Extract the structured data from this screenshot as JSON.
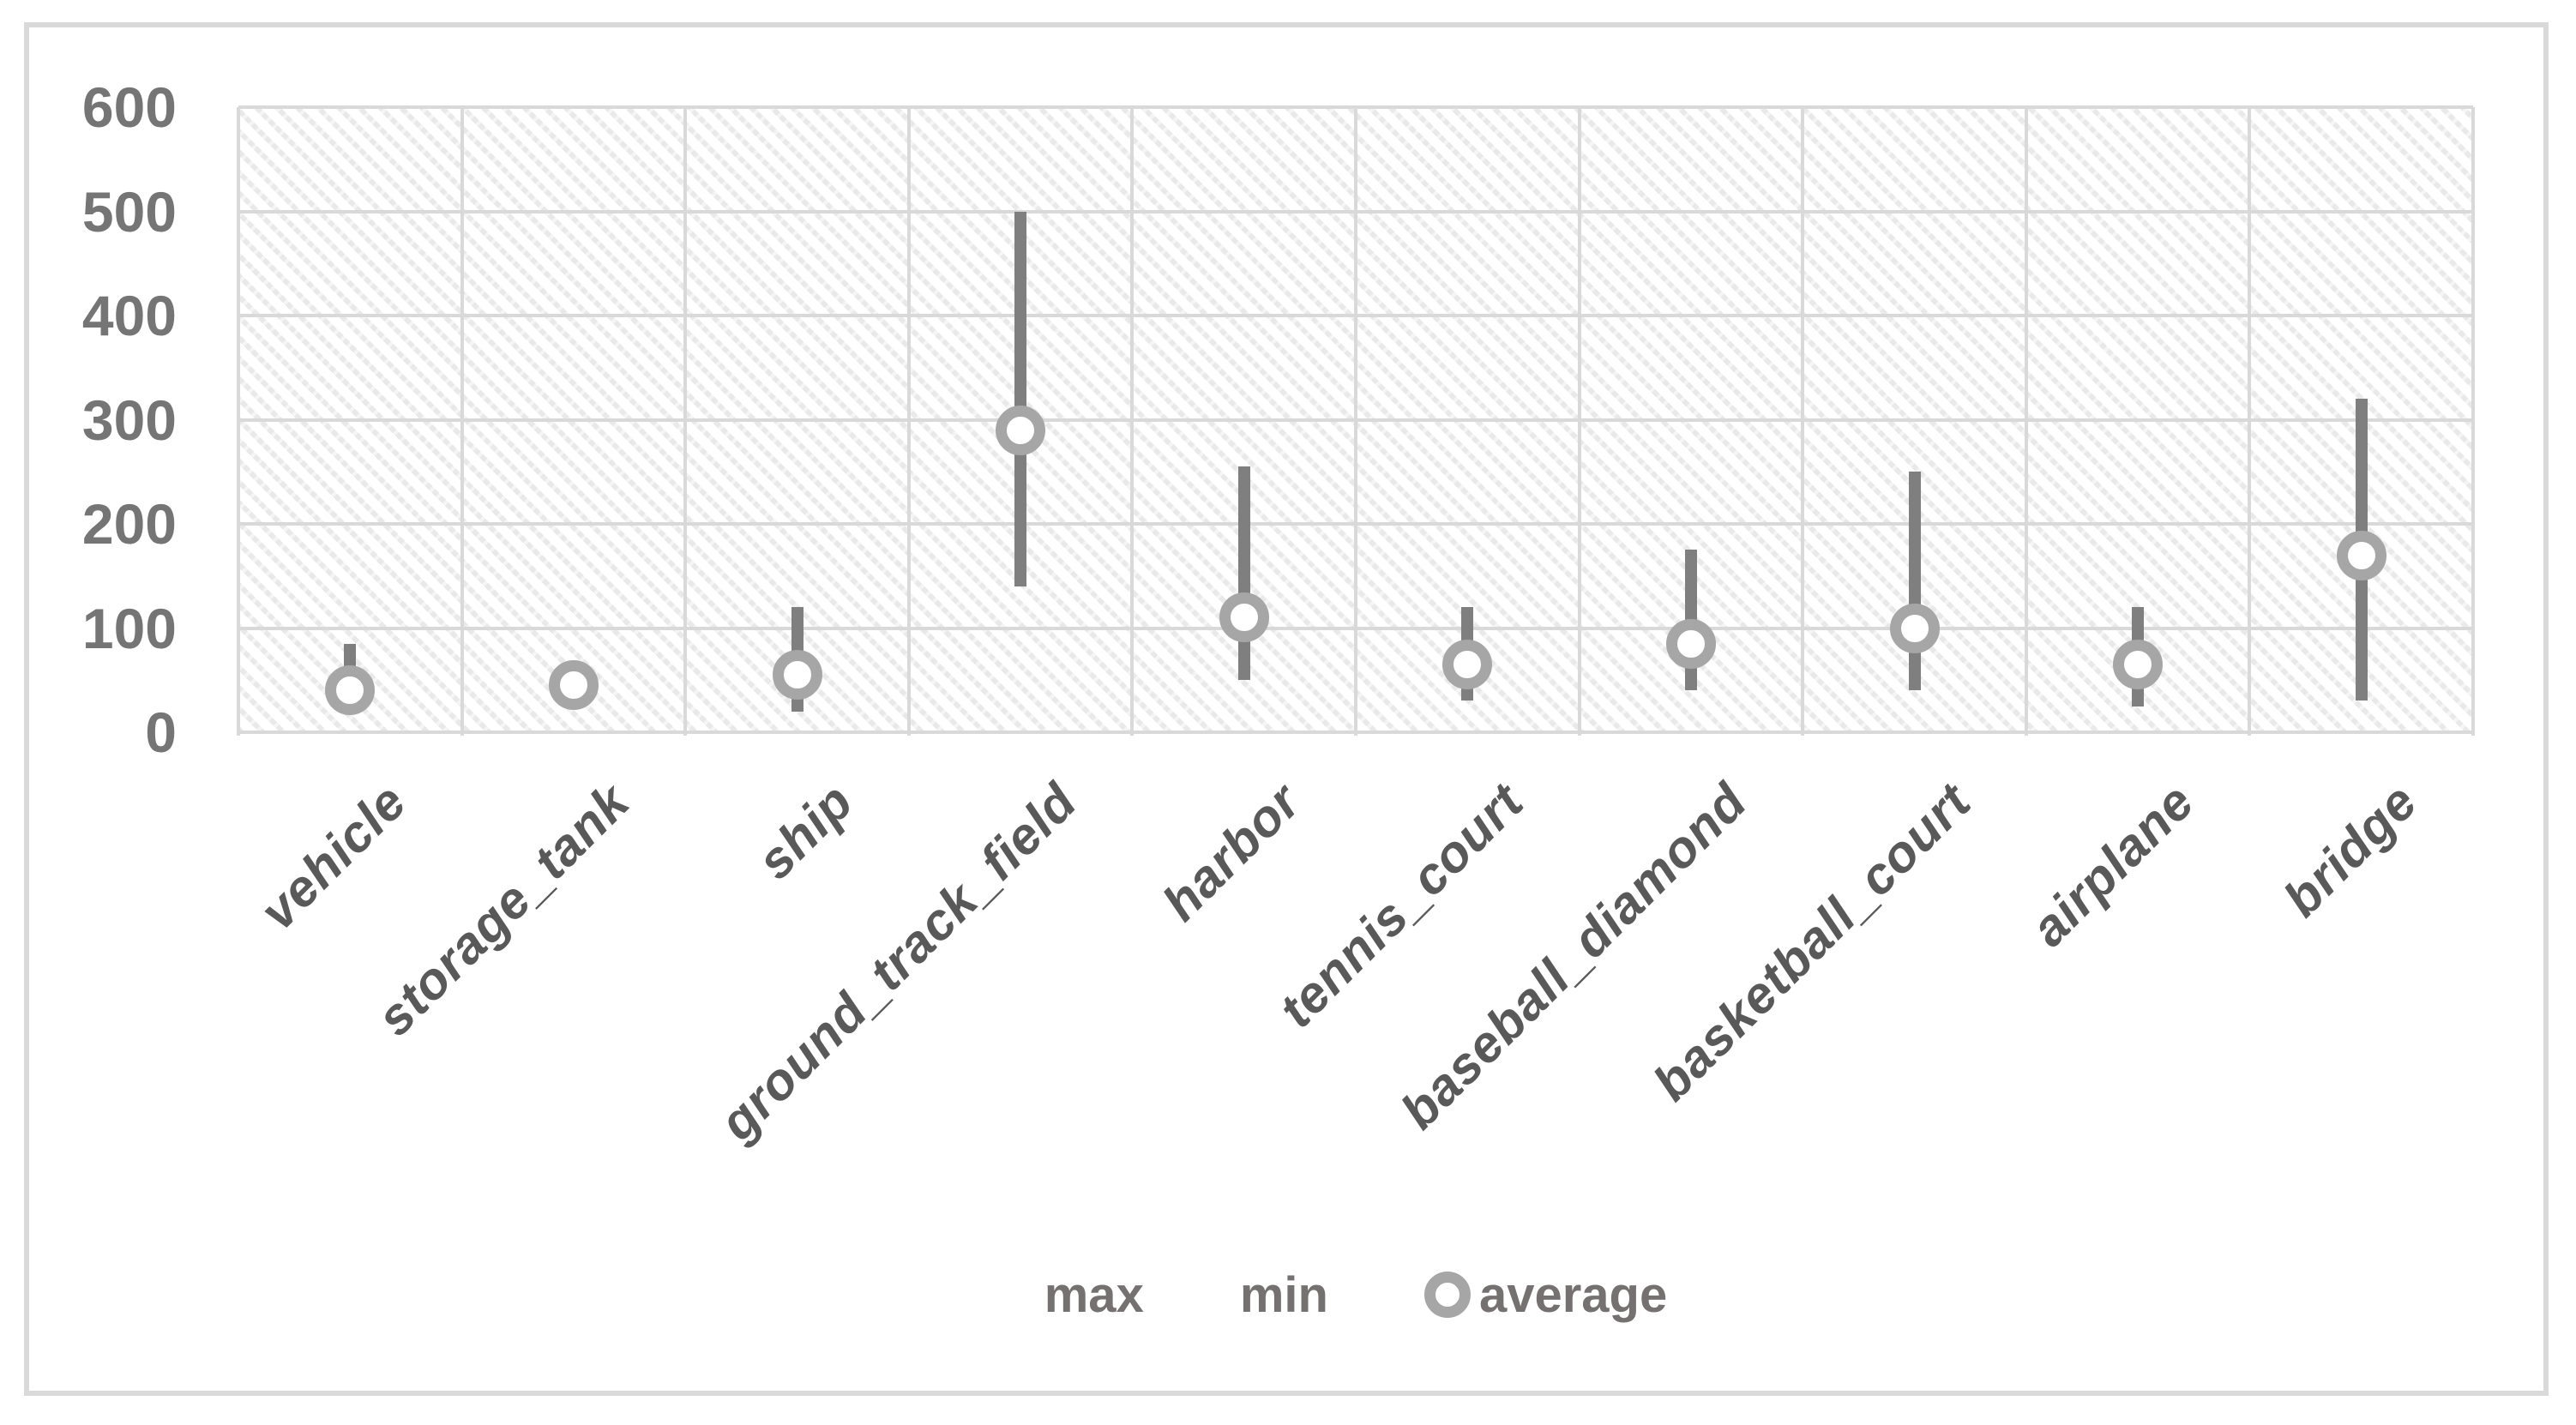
{
  "figure": {
    "background_color": "#ffffff",
    "frame_border_color": "#d9d9d9",
    "plot_hatch_style": "light-diagonal-pattern-fill",
    "gridline_color": "#d9d9d9",
    "range_bar_color": "#7f7f7f",
    "average_marker_color": "#a6a6a6",
    "y_label_color": "#757575",
    "x_label_color": "#595959",
    "legend_text_color": "#767171"
  },
  "chart_data": {
    "type": "scatter",
    "subtype": "high-low-range-with-average-marker",
    "title": "",
    "xlabel": "",
    "ylabel": "",
    "categories": [
      "vehicle",
      "storage_tank",
      "ship",
      "ground_track_field",
      "harbor",
      "tennis_court",
      "baseball_diamond",
      "basketball_court",
      "airplane",
      "bridge"
    ],
    "series": [
      {
        "name": "max",
        "values": [
          85,
          60,
          120,
          500,
          255,
          120,
          175,
          250,
          120,
          320
        ]
      },
      {
        "name": "min",
        "values": [
          20,
          30,
          20,
          140,
          50,
          30,
          40,
          40,
          25,
          30
        ]
      },
      {
        "name": "average",
        "values": [
          40,
          45,
          55,
          290,
          110,
          65,
          85,
          100,
          65,
          170
        ]
      }
    ],
    "ylim": [
      0,
      600
    ],
    "yticks": [
      0,
      100,
      200,
      300,
      400,
      500,
      600
    ],
    "grid": "on",
    "x_label_rotation_deg": 45,
    "legend_position": "bottom-center"
  },
  "legend": {
    "items": [
      {
        "label": "max",
        "marker": "none"
      },
      {
        "label": "min",
        "marker": "none"
      },
      {
        "label": "average",
        "marker": "ring"
      }
    ]
  }
}
